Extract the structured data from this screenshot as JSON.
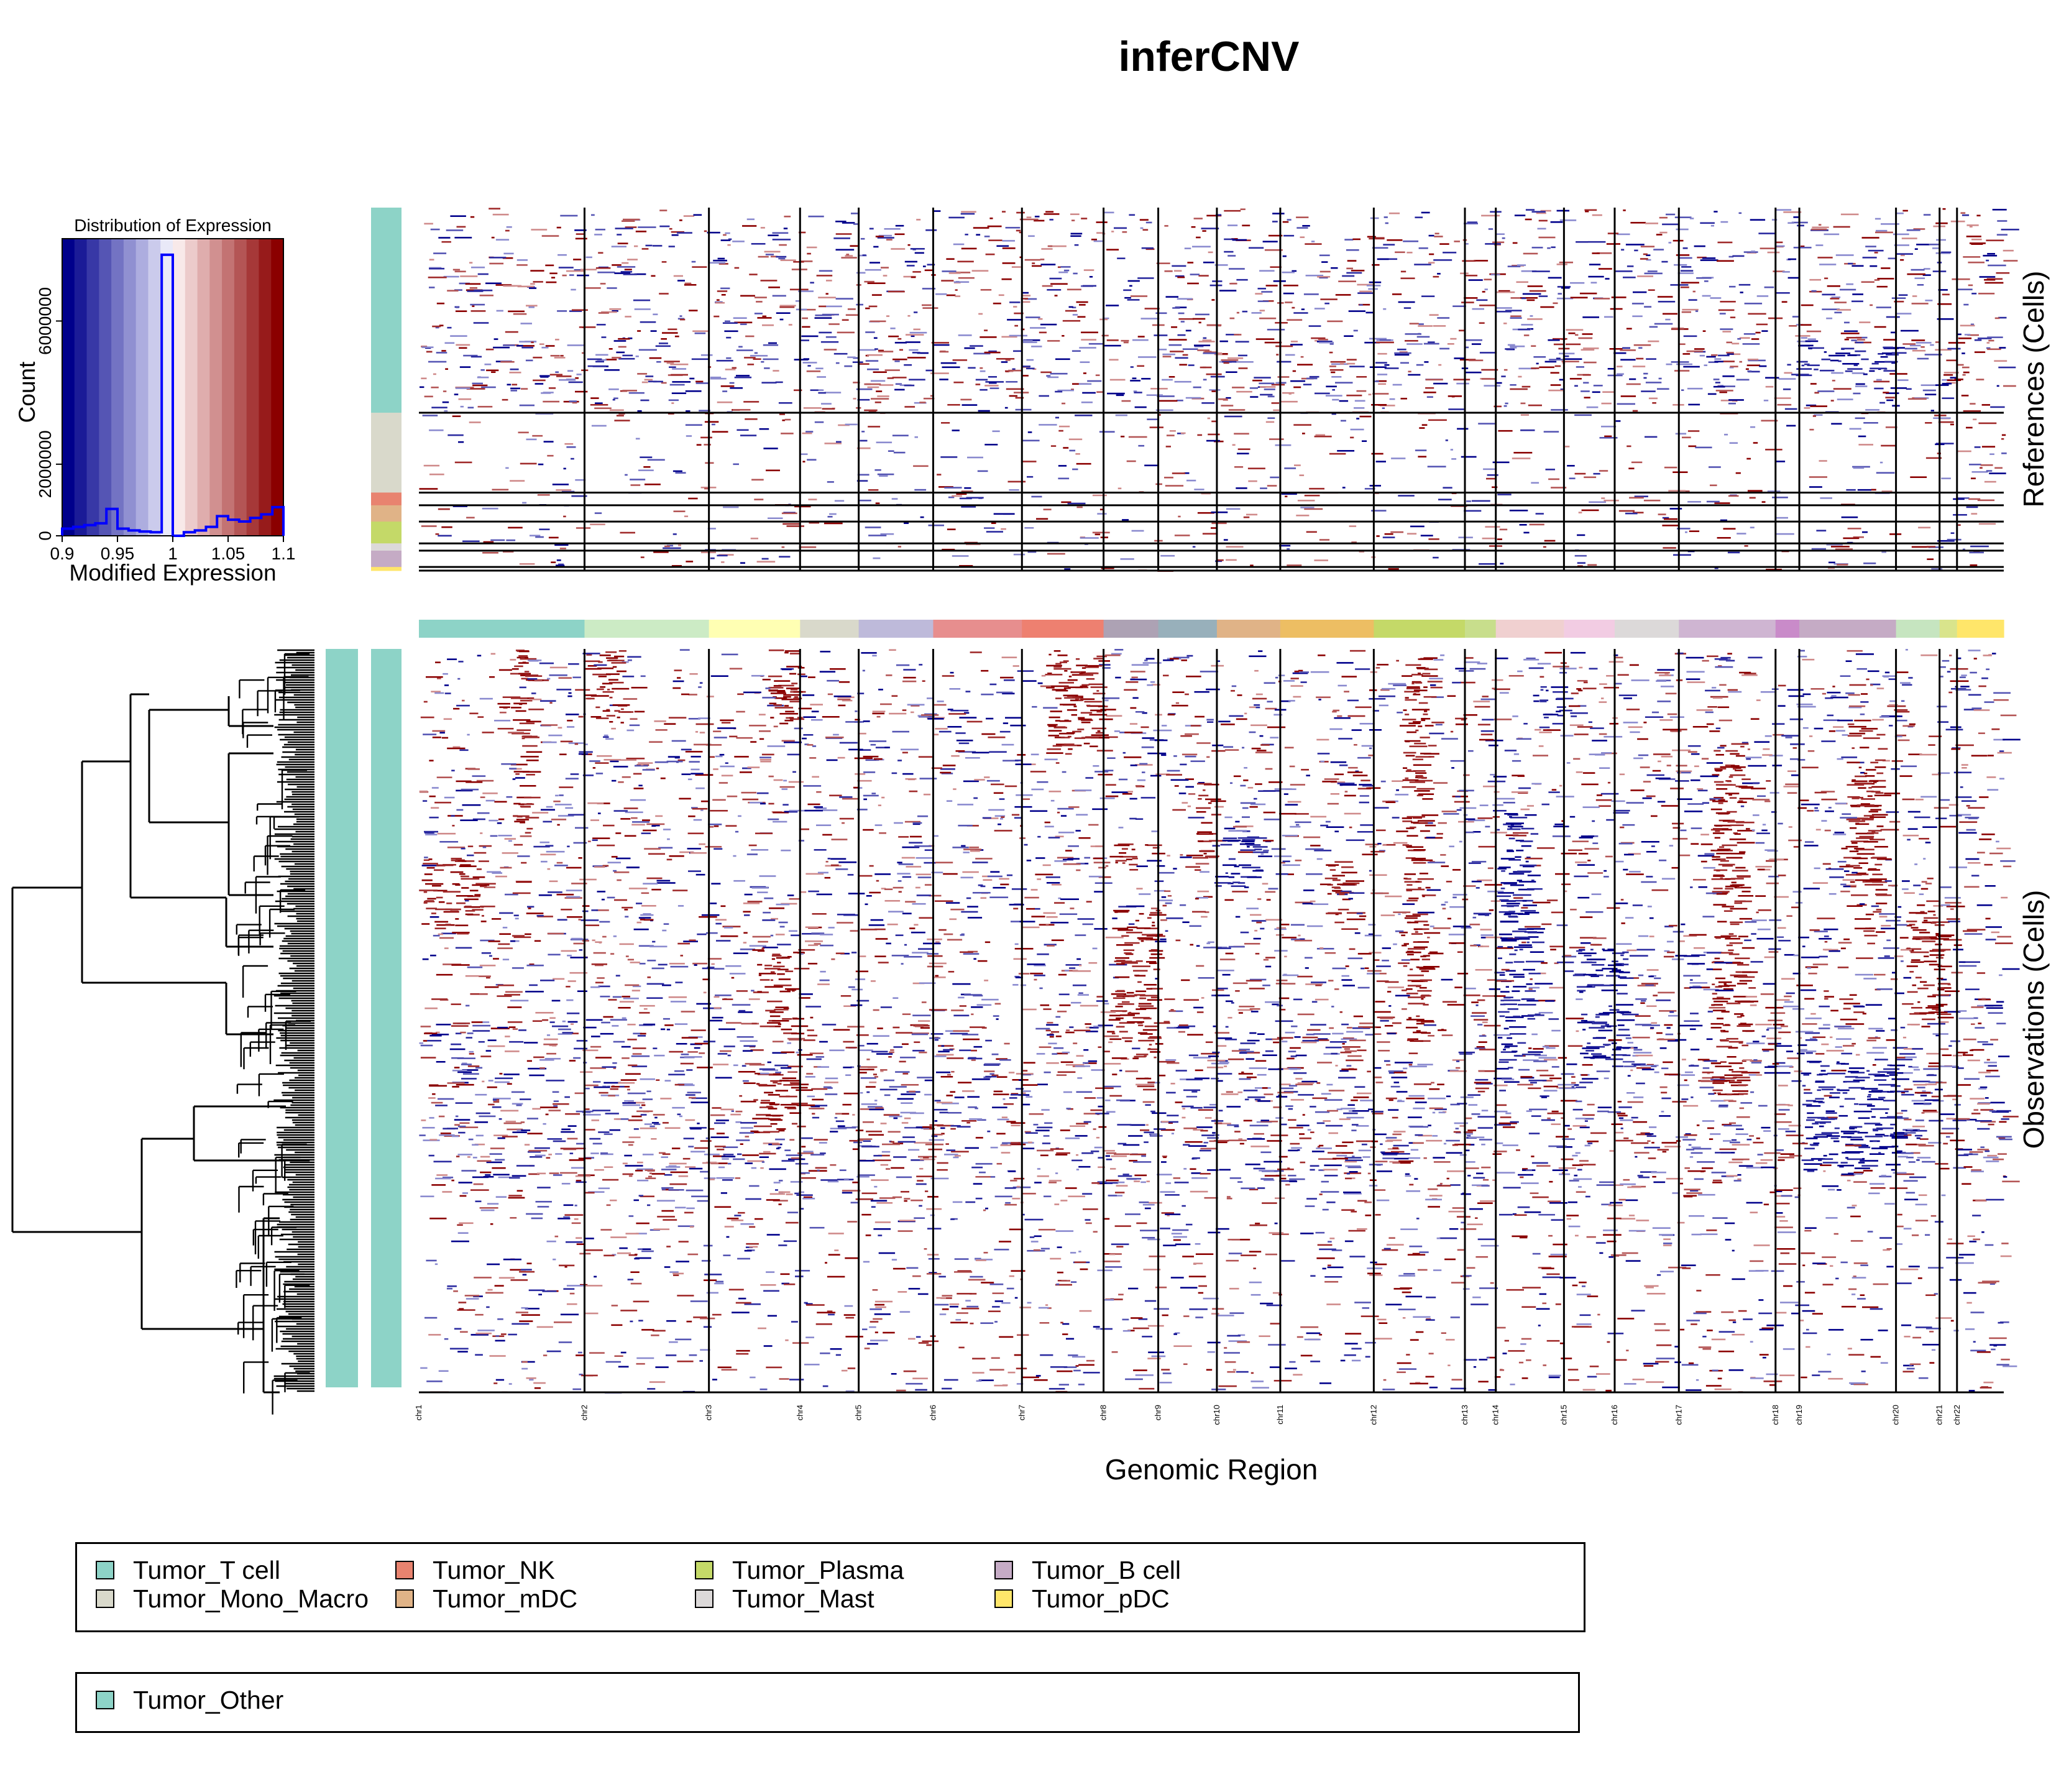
{
  "title": "inferCNV",
  "chart_data": [
    {
      "type": "histogram",
      "title": "Distribution of Expression",
      "xlabel": "Modified Expression",
      "ylabel": "Count",
      "xlim": [
        0.9,
        1.1
      ],
      "ylim": [
        0,
        8300000
      ],
      "x_ticks": [
        "0.9",
        "0.95",
        "1",
        "1.05",
        "1.1"
      ],
      "y_ticks": [
        "0",
        "2000000",
        "6000000"
      ],
      "colors": [
        "#00008B",
        "#1B1B97",
        "#3838A6",
        "#5555B4",
        "#7373C3",
        "#9090D1",
        "#ADADDF",
        "#CBCBEC",
        "#E9E9F8",
        "#F8E9E9",
        "#ECCBCB",
        "#DFADAD",
        "#D19090",
        "#C37373",
        "#B45555",
        "#A63838",
        "#971B1B",
        "#8B0000"
      ],
      "bins": [
        {
          "x": 0.905,
          "y": 200000
        },
        {
          "x": 0.915,
          "y": 250000
        },
        {
          "x": 0.925,
          "y": 300000
        },
        {
          "x": 0.935,
          "y": 350000
        },
        {
          "x": 0.945,
          "y": 750000
        },
        {
          "x": 0.955,
          "y": 200000
        },
        {
          "x": 0.965,
          "y": 150000
        },
        {
          "x": 0.975,
          "y": 120000
        },
        {
          "x": 0.985,
          "y": 100000
        },
        {
          "x": 0.995,
          "y": 7850000
        },
        {
          "x": 1.005,
          "y": 0
        },
        {
          "x": 1.015,
          "y": 100000
        },
        {
          "x": 1.025,
          "y": 150000
        },
        {
          "x": 1.035,
          "y": 250000
        },
        {
          "x": 1.045,
          "y": 550000
        },
        {
          "x": 1.055,
          "y": 450000
        },
        {
          "x": 1.065,
          "y": 400000
        },
        {
          "x": 1.075,
          "y": 500000
        },
        {
          "x": 1.085,
          "y": 600000
        },
        {
          "x": 1.095,
          "y": 800000
        }
      ]
    },
    {
      "type": "heatmap",
      "xlabel": "Genomic Region",
      "references_label": "References (Cells)",
      "observations_label": "Observations (Cells)",
      "chromosomes": [
        {
          "name": "chr1",
          "color": "#8DD3C7",
          "start": 0.0,
          "end": 0.1045
        },
        {
          "name": "chr2",
          "color": "#CCEBC5",
          "start": 0.1045,
          "end": 0.183
        },
        {
          "name": "chr3",
          "color": "#FFFFB3",
          "start": 0.183,
          "end": 0.2405
        },
        {
          "name": "chr4",
          "color": "#D9D9CB",
          "start": 0.2405,
          "end": 0.2775
        },
        {
          "name": "chr5",
          "color": "#BEBADA",
          "start": 0.2775,
          "end": 0.3245
        },
        {
          "name": "chr6",
          "color": "#E78E8E",
          "start": 0.3245,
          "end": 0.3805
        },
        {
          "name": "chr7",
          "color": "#EE8070",
          "start": 0.3805,
          "end": 0.432
        },
        {
          "name": "chr8",
          "color": "#ADA2B4",
          "start": 0.432,
          "end": 0.4665
        },
        {
          "name": "chr9",
          "color": "#98B0BB",
          "start": 0.4665,
          "end": 0.5035
        },
        {
          "name": "chr10",
          "color": "#E0B387",
          "start": 0.5035,
          "end": 0.5435
        },
        {
          "name": "chr11",
          "color": "#EDBE63",
          "start": 0.5435,
          "end": 0.6025
        },
        {
          "name": "chr12",
          "color": "#C4D968",
          "start": 0.6025,
          "end": 0.66
        },
        {
          "name": "chr13",
          "color": "#C8DE8C",
          "start": 0.66,
          "end": 0.6795
        },
        {
          "name": "chr14",
          "color": "#F0D0D0",
          "start": 0.6795,
          "end": 0.7225
        },
        {
          "name": "chr15",
          "color": "#F2CCE3",
          "start": 0.7225,
          "end": 0.7545
        },
        {
          "name": "chr16",
          "color": "#DCD9D9",
          "start": 0.7545,
          "end": 0.795
        },
        {
          "name": "chr17",
          "color": "#CFB5D2",
          "start": 0.795,
          "end": 0.856
        },
        {
          "name": "chr18",
          "color": "#C98BC9",
          "start": 0.856,
          "end": 0.871
        },
        {
          "name": "chr19",
          "color": "#C5ABC5",
          "start": 0.871,
          "end": 0.932
        },
        {
          "name": "chr20",
          "color": "#C6E5C0",
          "start": 0.932,
          "end": 0.9595
        },
        {
          "name": "chr21",
          "color": "#D9E48C",
          "start": 0.9595,
          "end": 0.9705
        },
        {
          "name": "chr22",
          "color": "#FFE66A",
          "start": 0.9705,
          "end": 1.0
        }
      ],
      "reference_groups": [
        {
          "name": "Tumor_T cell",
          "color": "#8DD3C7",
          "start": 0.0,
          "end": 0.565
        },
        {
          "name": "Tumor_Mono_Macro",
          "color": "#D9D9CB",
          "start": 0.565,
          "end": 0.785
        },
        {
          "name": "Tumor_NK",
          "color": "#E8836F",
          "start": 0.785,
          "end": 0.82
        },
        {
          "name": "Tumor_mDC",
          "color": "#E0B387",
          "start": 0.82,
          "end": 0.865
        },
        {
          "name": "Tumor_Plasma",
          "color": "#C4D968",
          "start": 0.865,
          "end": 0.925
        },
        {
          "name": "Tumor_Mast",
          "color": "#DCD9D9",
          "start": 0.925,
          "end": 0.945
        },
        {
          "name": "Tumor_B cell",
          "color": "#C5ABC5",
          "start": 0.945,
          "end": 0.99
        },
        {
          "name": "Tumor_pDC",
          "color": "#FFE66A",
          "start": 0.99,
          "end": 1.0
        }
      ]
    }
  ],
  "legend_references": [
    {
      "label": "Tumor_T cell",
      "color": "#8DD3C7"
    },
    {
      "label": "Tumor_Mono_Macro",
      "color": "#D9D9CB"
    },
    {
      "label": "Tumor_NK",
      "color": "#E8836F"
    },
    {
      "label": "Tumor_mDC",
      "color": "#E0B387"
    },
    {
      "label": "Tumor_Plasma",
      "color": "#C4D968"
    },
    {
      "label": "Tumor_Mast",
      "color": "#DCD9D9"
    },
    {
      "label": "Tumor_B cell",
      "color": "#C5ABC5"
    },
    {
      "label": "Tumor_pDC",
      "color": "#FFE66A"
    }
  ],
  "legend_observations": [
    {
      "label": "Tumor_Other",
      "color": "#8DD3C7"
    }
  ]
}
